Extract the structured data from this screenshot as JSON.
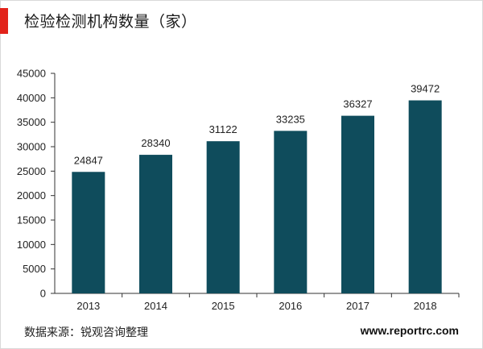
{
  "header": {
    "title": "检验检测机构数量（家）"
  },
  "colors": {
    "accent": "#e2231a",
    "bar": "#0f4c5c",
    "axis": "#333333",
    "text": "#222222"
  },
  "chart_data": {
    "type": "bar",
    "title": "检验检测机构数量（家）",
    "categories": [
      "2013",
      "2014",
      "2015",
      "2016",
      "2017",
      "2018"
    ],
    "values": [
      24847,
      28340,
      31122,
      33235,
      36327,
      39472
    ],
    "data_labels": [
      "24847",
      "28340",
      "31122",
      "33235",
      "36327",
      "39472"
    ],
    "xlabel": "",
    "ylabel": "",
    "ylim": [
      0,
      45000
    ],
    "yticks": [
      0,
      5000,
      10000,
      15000,
      20000,
      25000,
      30000,
      35000,
      40000,
      45000
    ],
    "ytick_labels": [
      "0",
      "5000",
      "10000",
      "15000",
      "20000",
      "25000",
      "30000",
      "35000",
      "40000",
      "45000"
    ],
    "grid": false,
    "legend": "none"
  },
  "footer": {
    "source": "数据来源：锐观咨询整理",
    "website": "www.reportrc.com"
  }
}
